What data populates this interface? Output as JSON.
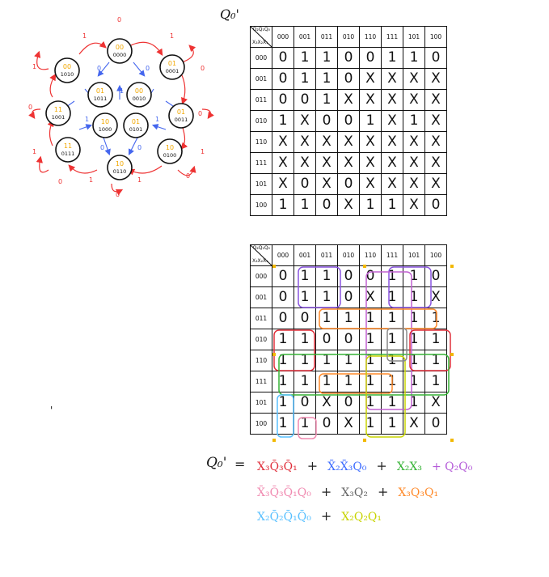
{
  "top_map": {
    "label": "Q₀'",
    "corner_top": "Q₂Q₁Q₀",
    "corner_left": "X₃X₂X₁",
    "col_headers": [
      "000",
      "001",
      "011",
      "010",
      "110",
      "111",
      "101",
      "100"
    ],
    "rows": [
      {
        "label": "000",
        "cells": [
          "0",
          "1",
          "1",
          "0",
          "0",
          "1",
          "1",
          "0"
        ]
      },
      {
        "label": "001",
        "cells": [
          "0",
          "1",
          "1",
          "0",
          "X",
          "X",
          "X",
          "X"
        ]
      },
      {
        "label": "011",
        "cells": [
          "0",
          "0",
          "1",
          "X",
          "X",
          "X",
          "X",
          "X"
        ]
      },
      {
        "label": "010",
        "cells": [
          "1",
          "X",
          "0",
          "0",
          "1",
          "X",
          "1",
          "X"
        ]
      },
      {
        "label": "110",
        "cells": [
          "X",
          "X",
          "X",
          "X",
          "X",
          "X",
          "X",
          "X"
        ]
      },
      {
        "label": "111",
        "cells": [
          "X",
          "X",
          "X",
          "X",
          "X",
          "X",
          "X",
          "X"
        ]
      },
      {
        "label": "101",
        "cells": [
          "X",
          "0",
          "X",
          "0",
          "X",
          "X",
          "X",
          "X"
        ]
      },
      {
        "label": "100",
        "cells": [
          "1",
          "1",
          "0",
          "X",
          "1",
          "1",
          "X",
          "0"
        ]
      }
    ]
  },
  "bottom_map": {
    "corner_top": "Q₂Q₁Q₀",
    "corner_left": "X₃X₂X₁",
    "col_headers": [
      "000",
      "001",
      "011",
      "010",
      "110",
      "111",
      "101",
      "100"
    ],
    "rows": [
      {
        "label": "000",
        "cells": [
          "0",
          "1",
          "1",
          "0",
          "0",
          "1",
          "1",
          "0"
        ]
      },
      {
        "label": "001",
        "cells": [
          "0",
          "1",
          "1",
          "0",
          "X",
          "1",
          "1",
          "X"
        ]
      },
      {
        "label": "011",
        "cells": [
          "0",
          "0",
          "1",
          "1",
          "1",
          "1",
          "1",
          "1"
        ]
      },
      {
        "label": "010",
        "cells": [
          "1",
          "1",
          "0",
          "0",
          "1",
          "1",
          "1",
          "1"
        ]
      },
      {
        "label": "110",
        "cells": [
          "1",
          "1",
          "1",
          "1",
          "1",
          "1",
          "1",
          "1"
        ]
      },
      {
        "label": "111",
        "cells": [
          "1",
          "1",
          "1",
          "1",
          "1",
          "1",
          "1",
          "1"
        ]
      },
      {
        "label": "101",
        "cells": [
          "1",
          "0",
          "X",
          "0",
          "1",
          "1",
          "1",
          "X"
        ]
      },
      {
        "label": "100",
        "cells": [
          "1",
          "1",
          "0",
          "X",
          "1",
          "1",
          "X",
          "0"
        ]
      }
    ]
  },
  "state_diagram": {
    "states": [
      {
        "q": "00",
        "code": "0000"
      },
      {
        "q": "01",
        "code": "0001"
      },
      {
        "q": "00",
        "code": "1010"
      },
      {
        "q": "01",
        "code": "1011"
      },
      {
        "q": "00",
        "code": "0010"
      },
      {
        "q": "11",
        "code": "1001"
      },
      {
        "q": "01",
        "code": "0011"
      },
      {
        "q": "10",
        "code": "1000"
      },
      {
        "q": "01",
        "code": "0101"
      },
      {
        "q": "11",
        "code": "0111"
      },
      {
        "q": "10",
        "code": "0100"
      },
      {
        "q": "10",
        "code": "0110"
      }
    ],
    "edge_labels": [
      "0",
      "1",
      "1",
      "0",
      "1",
      "0",
      "1",
      "0",
      "1",
      "0",
      "1",
      "0",
      "1",
      "0",
      "1",
      "0",
      "1",
      "0"
    ]
  },
  "equation": {
    "lhs": "Q₀'",
    "equals": "=",
    "line1": [
      {
        "text": "X₃Q̄₃Q̄₁",
        "color": "red"
      },
      {
        "text": "+",
        "color": "black"
      },
      {
        "text": "X̄₂X̄₃Q₀",
        "color": "blue"
      },
      {
        "text": "+",
        "color": "black"
      },
      {
        "text": "X₂X₃",
        "color": "green"
      },
      {
        "text": "+ Q₂Q₀",
        "color": "purple"
      }
    ],
    "line2": [
      {
        "text": "X̄₃Q̄₃Q̄₁Q₀",
        "color": "pink"
      },
      {
        "text": "+",
        "color": "black"
      },
      {
        "text": "X₃Q₂",
        "color": "gray"
      },
      {
        "text": "+",
        "color": "black"
      },
      {
        "text": "X₃Q₃Q₁",
        "color": "orange"
      }
    ],
    "line3": [
      {
        "text": "X₂Q̄₂Q̄₁Q̄₀",
        "color": "cyan"
      },
      {
        "text": "+",
        "color": "black"
      },
      {
        "text": "X₂Q₂Q₁",
        "color": "yellow"
      }
    ]
  },
  "stray_mark": "'"
}
